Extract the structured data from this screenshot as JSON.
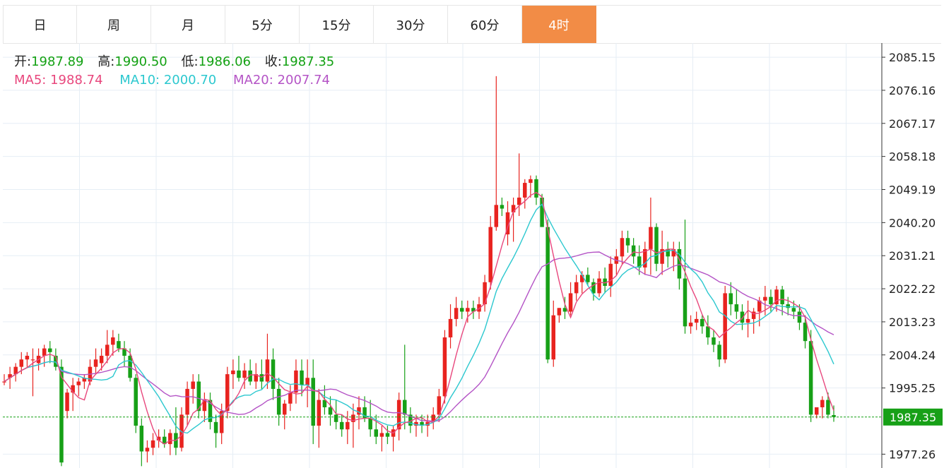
{
  "tabs": [
    {
      "label": "日",
      "active": false
    },
    {
      "label": "周",
      "active": false
    },
    {
      "label": "月",
      "active": false
    },
    {
      "label": "5分",
      "active": false
    },
    {
      "label": "15分",
      "active": false
    },
    {
      "label": "30分",
      "active": false
    },
    {
      "label": "60分",
      "active": false
    },
    {
      "label": "4时",
      "active": true
    }
  ],
  "info": {
    "open_label": "开:",
    "open": "1987.89",
    "high_label": "高:",
    "high": "1990.50",
    "low_label": "低:",
    "low": "1986.06",
    "close_label": "收:",
    "close": "1987.35",
    "ma5_label": "MA5:",
    "ma5": "1988.74",
    "ma10_label": "MA10:",
    "ma10": "2000.70",
    "ma20_label": "MA20:",
    "ma20": "2007.74"
  },
  "colors": {
    "up": "#e8231f",
    "down": "#17a017",
    "ma5": "#e8477d",
    "ma10": "#2cc8cf",
    "ma20": "#b454c6",
    "active_tab": "#f28c46",
    "grid": "#e6eef5",
    "price_line": "#17a017"
  },
  "chart_data": {
    "type": "candlestick",
    "ylim": [
      1973.5,
      2089
    ],
    "y_ticks": [
      2085.15,
      2076.16,
      2067.17,
      2058.18,
      2049.19,
      2040.2,
      2031.21,
      2022.22,
      2013.23,
      2004.24,
      1995.25,
      1977.26
    ],
    "current_price": "1987.35",
    "candles": [
      [
        1997,
        1999,
        1996,
        1997
      ],
      [
        1998,
        2001,
        1995,
        1999
      ],
      [
        1999,
        2002,
        1997,
        2001
      ],
      [
        2001,
        2005,
        1999,
        2003
      ],
      [
        2003,
        2005,
        2001,
        2004
      ],
      [
        2003,
        2006,
        1993,
        2003
      ],
      [
        2002,
        2006,
        2000,
        2004
      ],
      [
        2004,
        2007,
        2001,
        2006
      ],
      [
        2006,
        2008,
        2002,
        2005
      ],
      [
        2004,
        2006,
        2000,
        2001
      ],
      [
        2001,
        2003,
        1974,
        1975
      ],
      [
        1989,
        1995,
        1987,
        1994
      ],
      [
        1994,
        1998,
        1989,
        1996
      ],
      [
        1996,
        1998,
        1993,
        1997
      ],
      [
        1997,
        1999,
        1995,
        1998
      ],
      [
        1997,
        2003,
        1996,
        2001
      ],
      [
        2001,
        2006,
        1999,
        2003
      ],
      [
        2002,
        2006,
        2000,
        2004
      ],
      [
        2004,
        2011,
        2002,
        2007
      ],
      [
        2007,
        2011,
        2004,
        2009
      ],
      [
        2008,
        2010,
        2005,
        2006
      ],
      [
        2006,
        2008,
        2001,
        2004
      ],
      [
        2004,
        2006,
        1997,
        1998
      ],
      [
        1998,
        1999,
        1983,
        1985
      ],
      [
        1985,
        1987,
        1974,
        1978
      ],
      [
        1978,
        1981,
        1975,
        1979
      ],
      [
        1979,
        1983,
        1977,
        1981
      ],
      [
        1981,
        1984,
        1979,
        1982
      ],
      [
        1982,
        1984,
        1979,
        1980
      ],
      [
        1980,
        1984,
        1977,
        1983
      ],
      [
        1983,
        1990,
        1977,
        1979
      ],
      [
        1979,
        1990,
        1978,
        1988
      ],
      [
        1988,
        1997,
        1985,
        1995
      ],
      [
        1995,
        1999,
        1991,
        1997
      ],
      [
        1997,
        1999,
        1987,
        1989
      ],
      [
        1989,
        1994,
        1986,
        1992
      ],
      [
        1992,
        1994,
        1984,
        1986
      ],
      [
        1986,
        1988,
        1979,
        1983
      ],
      [
        1983,
        1991,
        1980,
        1989
      ],
      [
        1989,
        2001,
        1987,
        1999
      ],
      [
        1999,
        2003,
        1995,
        2000
      ],
      [
        2000,
        2004,
        1997,
        1998
      ],
      [
        1998,
        2002,
        1995,
        2000
      ],
      [
        2000,
        2003,
        1996,
        1997
      ],
      [
        1997,
        2002,
        1995,
        1999
      ],
      [
        1999,
        2003,
        1995,
        1997
      ],
      [
        1997,
        2010,
        1995,
        2003
      ],
      [
        2003,
        2006,
        1992,
        1995
      ],
      [
        1995,
        1998,
        1985,
        1988
      ],
      [
        1988,
        1992,
        1984,
        1991
      ],
      [
        1991,
        1996,
        1989,
        1994
      ],
      [
        1994,
        2003,
        1991,
        2000
      ],
      [
        2000,
        2003,
        1993,
        1996
      ],
      [
        1996,
        2003,
        1990,
        1998
      ],
      [
        1998,
        2003,
        1980,
        1985
      ],
      [
        1985,
        1995,
        1979,
        1992
      ],
      [
        1992,
        1996,
        1988,
        1990
      ],
      [
        1990,
        1993,
        1985,
        1988
      ],
      [
        1988,
        1992,
        1984,
        1986
      ],
      [
        1986,
        1988,
        1982,
        1984
      ],
      [
        1984,
        1989,
        1980,
        1986
      ],
      [
        1986,
        1991,
        1979,
        1988
      ],
      [
        1988,
        1993,
        1984,
        1990
      ],
      [
        1990,
        1993,
        1986,
        1987
      ],
      [
        1987,
        1992,
        1982,
        1984
      ],
      [
        1984,
        1988,
        1980,
        1982
      ],
      [
        1982,
        1985,
        1978,
        1983
      ],
      [
        1983,
        1985,
        1980,
        1982
      ],
      [
        1982,
        1985,
        1978,
        1984
      ],
      [
        1984,
        1994,
        1981,
        1992
      ],
      [
        1992,
        2007,
        1984,
        1988
      ],
      [
        1988,
        1990,
        1983,
        1985
      ],
      [
        1985,
        1988,
        1982,
        1986
      ],
      [
        1986,
        1988,
        1983,
        1985
      ],
      [
        1985,
        1988,
        1982,
        1986
      ],
      [
        1986,
        1990,
        1984,
        1988
      ],
      [
        1988,
        1995,
        1986,
        1993
      ],
      [
        1993,
        2011,
        1991,
        2009
      ],
      [
        2009,
        2018,
        2006,
        2014
      ],
      [
        2014,
        2020,
        2012,
        2017
      ],
      [
        2017,
        2019,
        2014,
        2016
      ],
      [
        2016,
        2019,
        2013,
        2017
      ],
      [
        2017,
        2019,
        2014,
        2016
      ],
      [
        2016,
        2020,
        2014,
        2018
      ],
      [
        2018,
        2026,
        2016,
        2024
      ],
      [
        2024,
        2042,
        2022,
        2039
      ],
      [
        2039,
        2080,
        2038,
        2045
      ],
      [
        2045,
        2047,
        2042,
        2044
      ],
      [
        2037,
        2046,
        2034,
        2043
      ],
      [
        2043,
        2047,
        2035,
        2045
      ],
      [
        2045,
        2059,
        2042,
        2047
      ],
      [
        2047,
        2052,
        2044,
        2051
      ],
      [
        2051,
        2053,
        2047,
        2052
      ],
      [
        2052,
        2053,
        2045,
        2047
      ],
      [
        2047,
        2048,
        2040,
        2039
      ],
      [
        2039,
        2041,
        2002,
        2003
      ],
      [
        2003,
        2019,
        2001,
        2015
      ],
      [
        2015,
        2017,
        2013,
        2017
      ],
      [
        2017,
        2020,
        2014,
        2016
      ],
      [
        2016,
        2024,
        2015,
        2021
      ],
      [
        2021,
        2026,
        2019,
        2024
      ],
      [
        2024,
        2027,
        2021,
        2026
      ],
      [
        2026,
        2028,
        2023,
        2024
      ],
      [
        2024,
        2025,
        2019,
        2021
      ],
      [
        2021,
        2027,
        2020,
        2025
      ],
      [
        2025,
        2028,
        2021,
        2023
      ],
      [
        2023,
        2031,
        2020,
        2029
      ],
      [
        2029,
        2033,
        2026,
        2031
      ],
      [
        2031,
        2038,
        2029,
        2036
      ],
      [
        2036,
        2038,
        2032,
        2034
      ],
      [
        2034,
        2036,
        2029,
        2031
      ],
      [
        2031,
        2034,
        2026,
        2028
      ],
      [
        2028,
        2035,
        2026,
        2033
      ],
      [
        2033,
        2047,
        2026,
        2039
      ],
      [
        2039,
        2040,
        2027,
        2029
      ],
      [
        2029,
        2038,
        2026,
        2033
      ],
      [
        2033,
        2035,
        2028,
        2031
      ],
      [
        2031,
        2035,
        2027,
        2033
      ],
      [
        2033,
        2035,
        2022,
        2025
      ],
      [
        2025,
        2041,
        2010,
        2012
      ],
      [
        2012,
        2015,
        2010,
        2013
      ],
      [
        2013,
        2016,
        2011,
        2014
      ],
      [
        2014,
        2015,
        2010,
        2012
      ],
      [
        2012,
        2015,
        2007,
        2009
      ],
      [
        2009,
        2011,
        2005,
        2007
      ],
      [
        2007,
        2008,
        2001,
        2003
      ],
      [
        2003,
        2023,
        2002,
        2021
      ],
      [
        2021,
        2024,
        2015,
        2018
      ],
      [
        2018,
        2022,
        2014,
        2016
      ],
      [
        2016,
        2018,
        2011,
        2013
      ],
      [
        2013,
        2019,
        2009,
        2014
      ],
      [
        2014,
        2017,
        2010,
        2016
      ],
      [
        2016,
        2020,
        2012,
        2019
      ],
      [
        2019,
        2023,
        2015,
        2020
      ],
      [
        2020,
        2022,
        2016,
        2018
      ],
      [
        2018,
        2023,
        2016,
        2022
      ],
      [
        2022,
        2023,
        2015,
        2018
      ],
      [
        2018,
        2020,
        2015,
        2017
      ],
      [
        2017,
        2019,
        2014,
        2016
      ],
      [
        2016,
        2018,
        2011,
        2013
      ],
      [
        2013,
        2015,
        2006,
        2008
      ],
      [
        2008,
        2011,
        1986,
        1988
      ],
      [
        1988,
        1990,
        1987,
        1990
      ],
      [
        1990,
        1993,
        1987,
        1992
      ],
      [
        1992,
        1994,
        1987,
        1988
      ],
      [
        1987.89,
        1990.5,
        1986.06,
        1987.35
      ]
    ],
    "ma_series": [
      {
        "name": "MA5",
        "last_value": "1988.74"
      },
      {
        "name": "MA10",
        "last_value": "2000.70"
      },
      {
        "name": "MA20",
        "last_value": "2007.74"
      }
    ]
  }
}
